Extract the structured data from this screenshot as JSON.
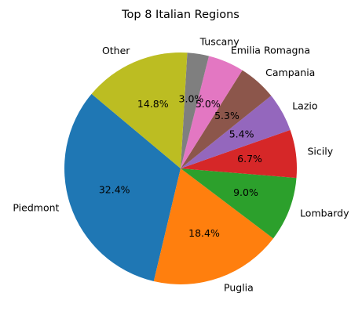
{
  "chart_data": {
    "type": "pie",
    "title": "Top 8 Italian Regions",
    "start_angle_deg": 140,
    "direction": "counterclockwise",
    "slices": [
      {
        "label": "Piedmont",
        "value": 32.4,
        "pct_label": "32.4%",
        "color": "#1f77b4"
      },
      {
        "label": "Puglia",
        "value": 18.4,
        "pct_label": "18.4%",
        "color": "#ff7f0e"
      },
      {
        "label": "Lombardy",
        "value": 9.0,
        "pct_label": "9.0%",
        "color": "#2ca02c"
      },
      {
        "label": "Sicily",
        "value": 6.7,
        "pct_label": "6.7%",
        "color": "#d62728"
      },
      {
        "label": "Lazio",
        "value": 5.4,
        "pct_label": "5.4%",
        "color": "#9467bd"
      },
      {
        "label": "Campania",
        "value": 5.3,
        "pct_label": "5.3%",
        "color": "#8c564b"
      },
      {
        "label": "Emilia Romagna",
        "value": 5.0,
        "pct_label": "5.0%",
        "color": "#e377c2"
      },
      {
        "label": "Tuscany",
        "value": 3.0,
        "pct_label": "3.0%",
        "color": "#7f7f7f"
      },
      {
        "label": "Other",
        "value": 14.8,
        "pct_label": "14.8%",
        "color": "#bcbd22"
      }
    ]
  }
}
